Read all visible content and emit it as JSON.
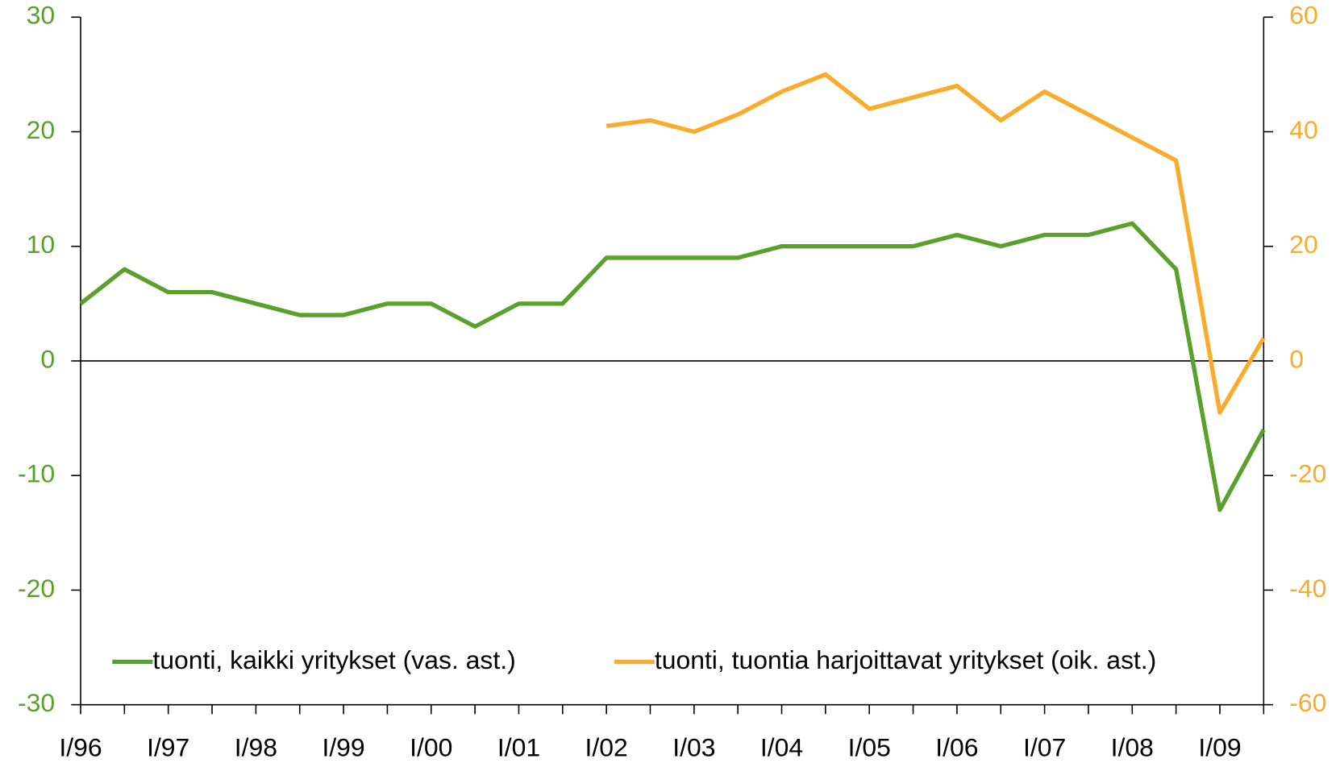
{
  "chart_data": {
    "type": "line",
    "categories": [
      "I/96",
      null,
      "I/97",
      null,
      "I/98",
      null,
      "I/99",
      null,
      "I/00",
      null,
      "I/01",
      null,
      "I/02",
      null,
      "I/03",
      null,
      "I/04",
      null,
      "I/05",
      null,
      "I/06",
      null,
      "I/07",
      null,
      "I/08",
      null,
      "I/09",
      null
    ],
    "series": [
      {
        "name": "tuonti, kaikki yritykset (vas. ast.)",
        "color": "#5aa02c",
        "axis": "y",
        "values": [
          5,
          8,
          6,
          6,
          5,
          4,
          4,
          5,
          5,
          3,
          5,
          5,
          9,
          9,
          9,
          9,
          10,
          10,
          10,
          10,
          11,
          10,
          11,
          11,
          12,
          8,
          -13,
          -6
        ]
      },
      {
        "name": "tuonti, tuontia harjoittavat yritykset (oik. ast.)",
        "color": "#fbab2c",
        "axis": "y2",
        "values": [
          null,
          null,
          null,
          null,
          null,
          null,
          null,
          null,
          null,
          null,
          null,
          null,
          41,
          42,
          40,
          43,
          47,
          50,
          44,
          46,
          48,
          42,
          47,
          43,
          39,
          35,
          -9,
          4
        ]
      }
    ],
    "ylim": [
      -30,
      30
    ],
    "yticks": [
      -30,
      -20,
      -10,
      0,
      10,
      20,
      30
    ],
    "y2lim": [
      -60,
      60
    ],
    "y2ticks": [
      -60,
      -40,
      -20,
      0,
      20,
      40,
      60
    ],
    "legend": "bottom"
  }
}
